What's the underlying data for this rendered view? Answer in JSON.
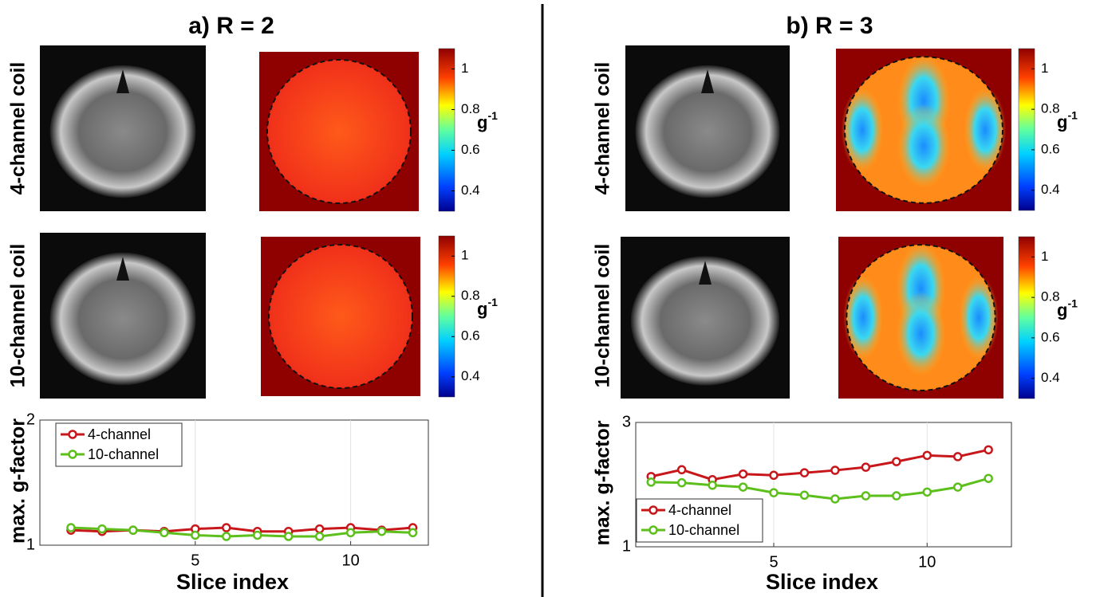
{
  "panels": [
    {
      "title": "a) R = 2",
      "rows": [
        "4-channel coil",
        "10-channel coil"
      ],
      "colorbar": {
        "lim": [
          0.3,
          1.1
        ],
        "ticks": [
          0.4,
          0.6,
          0.8,
          1
        ],
        "label": "g",
        "label_sup": "-1"
      }
    },
    {
      "title": "b) R = 3",
      "rows": [
        "4-channel coil",
        "10-channel coil"
      ],
      "colorbar": {
        "lim": [
          0.3,
          1.1
        ],
        "ticks": [
          0.4,
          0.6,
          0.8,
          1
        ],
        "label": "g",
        "label_sup": "-1"
      }
    }
  ],
  "chart_data": [
    {
      "type": "line",
      "xlabel": "Slice index",
      "ylabel": "max. g-factor",
      "x": [
        1,
        2,
        3,
        4,
        5,
        6,
        7,
        8,
        9,
        10,
        11,
        12
      ],
      "xlim": [
        0,
        12.5
      ],
      "xticks": [
        5,
        10
      ],
      "ylim": [
        1,
        2
      ],
      "yticks": [
        1,
        2
      ],
      "grid": "x",
      "legend": "upper left",
      "series": [
        {
          "name": "4-channel",
          "color": "#c8171b",
          "values": [
            1.12,
            1.11,
            1.12,
            1.11,
            1.13,
            1.14,
            1.11,
            1.11,
            1.13,
            1.14,
            1.12,
            1.14
          ]
        },
        {
          "name": "10-channel",
          "color": "#5cbf1b",
          "values": [
            1.14,
            1.13,
            1.12,
            1.1,
            1.08,
            1.07,
            1.08,
            1.07,
            1.07,
            1.1,
            1.11,
            1.1
          ]
        }
      ]
    },
    {
      "type": "line",
      "xlabel": "Slice index",
      "ylabel": "max. g-factor",
      "x": [
        1,
        2,
        3,
        4,
        5,
        6,
        7,
        8,
        9,
        10,
        11,
        12
      ],
      "xlim": [
        0.5,
        12.75
      ],
      "xticks": [
        5,
        10
      ],
      "ylim": [
        1,
        3
      ],
      "yticks": [
        1,
        3
      ],
      "grid": "x",
      "legend": "lower left",
      "series": [
        {
          "name": "4-channel",
          "color": "#c8171b",
          "values": [
            2.13,
            2.24,
            2.08,
            2.17,
            2.15,
            2.19,
            2.23,
            2.28,
            2.37,
            2.47,
            2.45,
            2.56
          ]
        },
        {
          "name": "10-channel",
          "color": "#5cbf1b",
          "values": [
            2.04,
            2.03,
            1.99,
            1.96,
            1.87,
            1.83,
            1.77,
            1.82,
            1.82,
            1.88,
            1.96,
            2.1
          ]
        }
      ]
    }
  ]
}
